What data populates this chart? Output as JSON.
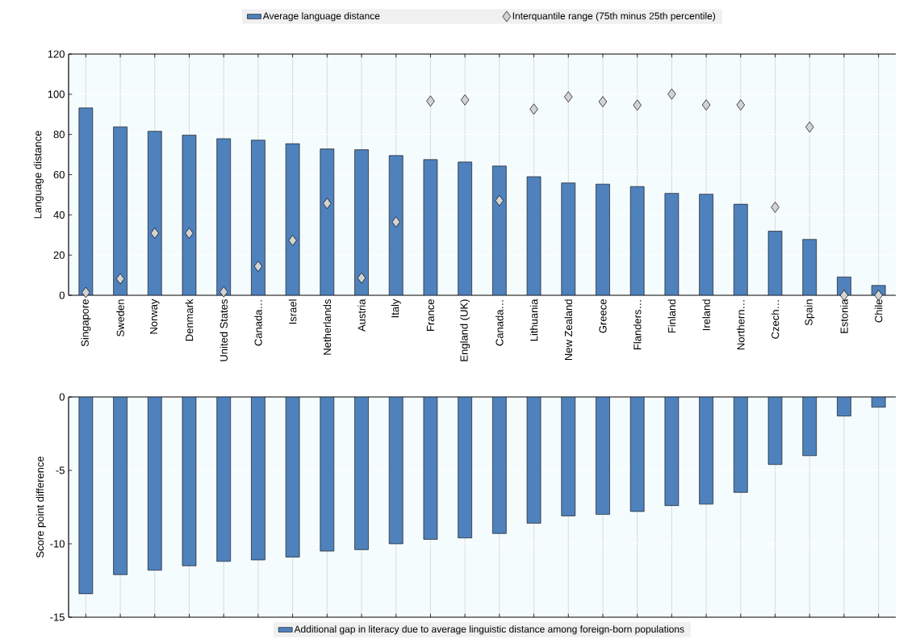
{
  "chart_data": [
    {
      "type": "bar",
      "categories": [
        "Singapore",
        "Sweden",
        "Norway",
        "Denmark",
        "United States",
        "Canada…",
        "Israel",
        "Netherlands",
        "Austria",
        "Italy",
        "France",
        "England (UK)",
        "Canada…",
        "Lithuania",
        "New Zealand",
        "Greece",
        "Flanders…",
        "Finland",
        "Ireland",
        "Northern…",
        "Czech…",
        "Spain",
        "Estonia",
        "Chile"
      ],
      "series": [
        {
          "name": "Average language distance",
          "color": "#4f81bd",
          "values": [
            93.2,
            83.8,
            81.6,
            79.7,
            77.9,
            77.2,
            75.4,
            72.8,
            72.4,
            69.5,
            67.5,
            66.3,
            64.3,
            59.0,
            55.9,
            55.3,
            54.1,
            50.7,
            50.3,
            45.3,
            31.9,
            27.8,
            9.1,
            4.9
          ]
        },
        {
          "name": "Interquantile range (75th minus 25th percentile)",
          "type": "scatter",
          "color": "#d3d3d3",
          "values": [
            1.4,
            8.2,
            30.9,
            30.9,
            1.7,
            14.4,
            27.3,
            45.7,
            8.6,
            36.5,
            96.6,
            97.2,
            47.1,
            92.6,
            98.7,
            96.3,
            94.6,
            100.1,
            94.7,
            94.7,
            43.8,
            83.7,
            0,
            0
          ]
        }
      ],
      "marker": "diamond",
      "ylabel": "Language distance",
      "ylim": [
        0,
        120
      ],
      "yticks": [
        0,
        20,
        40,
        60,
        80,
        100,
        120
      ],
      "grid": true,
      "legend": "top"
    },
    {
      "type": "bar",
      "categories": [
        null,
        null,
        null,
        null,
        null,
        null,
        null,
        null,
        null,
        null,
        null,
        null,
        null,
        null,
        null,
        null,
        null,
        null,
        null,
        null,
        null,
        null,
        null,
        null
      ],
      "series": [
        {
          "name": "Additional gap in literacy due to average linguistic distance among foreign-born populations",
          "color": "#4f81bd",
          "values": [
            -13.4,
            -12.1,
            -11.8,
            -11.5,
            -11.2,
            -11.1,
            -10.9,
            -10.5,
            -10.4,
            -10.0,
            -9.7,
            -9.6,
            -9.3,
            -8.6,
            -8.1,
            -8.0,
            -7.8,
            -7.4,
            -7.3,
            -6.5,
            -4.6,
            -4.0,
            -1.3,
            -0.7
          ]
        }
      ],
      "ylabel": "Score point difference",
      "ylim": [
        -15,
        0
      ],
      "yticks": [
        -15,
        -10,
        -5,
        0
      ],
      "grid": true,
      "legend": "bottom"
    }
  ]
}
